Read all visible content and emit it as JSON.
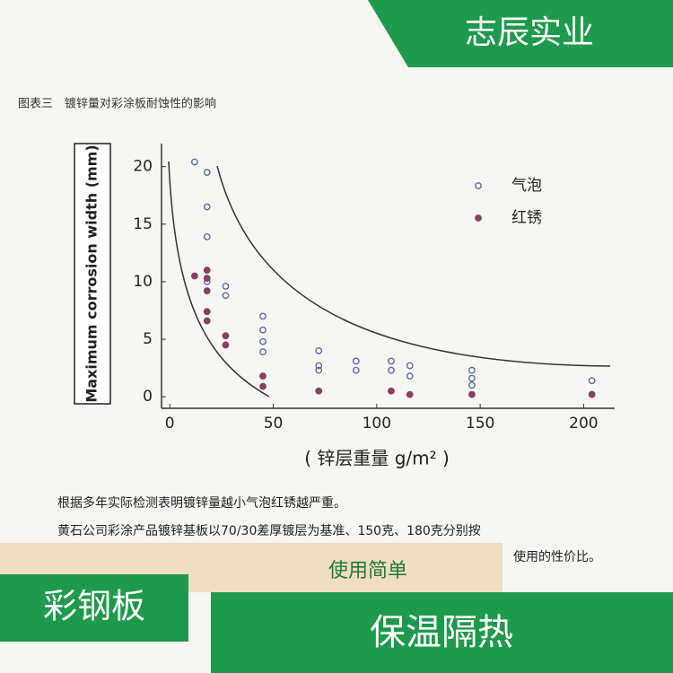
{
  "banner_top": "志辰实业",
  "caption": "图表三　镀锌量对彩涂板耐蚀性的影响",
  "chart_data": {
    "type": "scatter",
    "x_label": "( 锌层重量 g/m² )",
    "y_label": "Maximum corrosion width (mm)",
    "xlim": [
      -4,
      215
    ],
    "xticks": [
      0,
      50,
      100,
      150,
      200
    ],
    "ylim": [
      -1,
      22
    ],
    "yticks": [
      0,
      5,
      10,
      15,
      20
    ],
    "series": [
      {
        "name": "气泡",
        "color": "#5b68ad",
        "filled": false,
        "x": [
          12,
          18,
          18,
          18,
          18,
          27,
          27,
          45,
          45,
          45,
          45,
          72,
          72,
          72,
          90,
          90,
          107,
          107,
          116,
          116,
          146,
          146,
          146,
          204
        ],
        "y": [
          20.4,
          19.5,
          16.5,
          13.9,
          10.0,
          9.6,
          8.8,
          7.0,
          5.8,
          4.8,
          3.9,
          4.0,
          2.7,
          2.3,
          3.1,
          2.3,
          3.1,
          2.3,
          2.7,
          1.8,
          2.3,
          1.6,
          1.0,
          1.4
        ]
      },
      {
        "name": "红锈",
        "color": "#8a3f63",
        "filled": true,
        "x": [
          12,
          18,
          18,
          18,
          18,
          18,
          27,
          27,
          45,
          45,
          72,
          107,
          116,
          146,
          204
        ],
        "y": [
          10.5,
          11.0,
          10.3,
          9.2,
          7.4,
          6.6,
          5.3,
          4.5,
          1.8,
          0.9,
          0.5,
          0.5,
          0.2,
          0.2,
          0.2
        ]
      }
    ]
  },
  "paragraph": [
    "根据多年实际检测表明镀锌量越小气泡红锈越严重。",
    "黄石公司彩涂产品镀锌基板以70/30差厚镀层为基准、150克、180克分别按",
    "使用的性价比。"
  ],
  "tag_middle": "使用简单",
  "tag_left": "彩钢板",
  "banner_bottom": "保温隔热"
}
